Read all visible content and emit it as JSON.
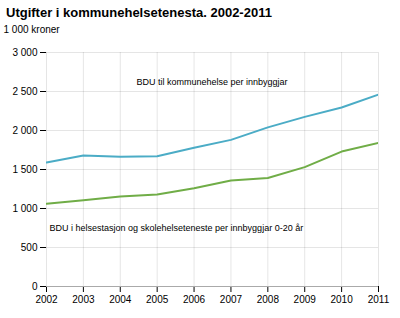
{
  "chart_data": {
    "type": "line",
    "title": "Utgifter i kommunehelsetenesta. 2002-2011",
    "y_label": "1 000 kroner",
    "x": [
      2002,
      2003,
      2004,
      2005,
      2006,
      2007,
      2008,
      2009,
      2010,
      2011
    ],
    "series": [
      {
        "name": "BDU til kommunehelse per innbyggjar",
        "color": "#4bacc6",
        "values": [
          1590,
          1680,
          1665,
          1670,
          1780,
          1880,
          2040,
          2175,
          2295,
          2460
        ]
      },
      {
        "name": "BDU i helsestasjon og skolehelseteneste per innbyggjar 0-20 år",
        "color": "#70ad47",
        "values": [
          1060,
          1105,
          1155,
          1180,
          1260,
          1360,
          1390,
          1530,
          1730,
          1840
        ]
      }
    ],
    "xlim": [
      2002,
      2011
    ],
    "xticks": [
      2002,
      2003,
      2004,
      2005,
      2006,
      2007,
      2008,
      2009,
      2010,
      2011
    ],
    "ylim": [
      0,
      3000
    ],
    "yticks": [
      0,
      500,
      {
        "value": 1000,
        "label": "1 000"
      },
      {
        "value": 1500,
        "label": "1 500"
      },
      {
        "value": 2000,
        "label": "2 000"
      },
      {
        "value": 2500,
        "label": "2 500"
      },
      {
        "value": 3000,
        "label": "3 000"
      }
    ],
    "grid": true
  }
}
